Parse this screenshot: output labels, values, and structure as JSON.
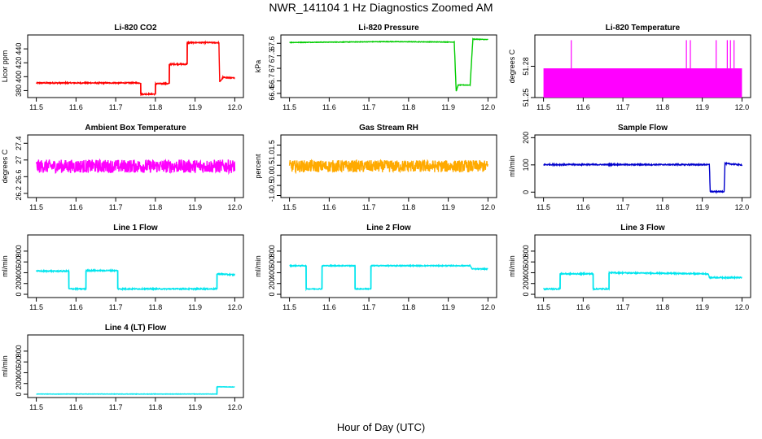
{
  "page": {
    "title": "NWR_141104  1 Hz Diagnostics Zoomed AM",
    "x_axis_title": "Hour of Day (UTC)"
  },
  "chart_data": [
    {
      "type": "line",
      "title": "Li-820 CO2",
      "ylabel": "Licor ppm",
      "color": "#ff0000",
      "xlim": [
        11.5,
        12.0
      ],
      "ylim": [
        370,
        460
      ],
      "xticks": [
        "11.5",
        "11.6",
        "11.7",
        "11.8",
        "11.9",
        "12.0"
      ],
      "yticks": [
        380,
        400,
        420,
        440
      ],
      "noise": 0.8,
      "series": [
        {
          "name": "CO2",
          "points": [
            [
              11.5,
              391
            ],
            [
              11.763,
              391
            ],
            [
              11.763,
              375
            ],
            [
              11.8,
              375
            ],
            [
              11.8,
              390
            ],
            [
              11.835,
              390
            ],
            [
              11.835,
              418
            ],
            [
              11.88,
              418
            ],
            [
              11.88,
              449
            ],
            [
              11.96,
              449
            ],
            [
              11.962,
              392
            ],
            [
              11.97,
              399
            ],
            [
              12.0,
              398
            ]
          ]
        }
      ]
    },
    {
      "type": "line",
      "title": "Li-820 Pressure",
      "ylabel": "kPa",
      "color": "#00cc00",
      "xlim": [
        11.5,
        12.0
      ],
      "ylim": [
        66.3,
        67.8
      ],
      "xticks": [
        "11.5",
        "11.6",
        "11.7",
        "11.8",
        "11.9",
        "12.0"
      ],
      "yticks": [
        66.4,
        66.7,
        67.0,
        67.3,
        67.6
      ],
      "noise": 0.006,
      "series": [
        {
          "name": "Pressure",
          "points": [
            [
              11.5,
              67.62
            ],
            [
              11.75,
              67.64
            ],
            [
              11.915,
              67.63
            ],
            [
              11.92,
              66.45
            ],
            [
              11.925,
              66.6
            ],
            [
              11.955,
              66.6
            ],
            [
              11.962,
              67.7
            ],
            [
              12.0,
              67.69
            ]
          ]
        }
      ]
    },
    {
      "type": "line",
      "title": "Li-820 Temperature",
      "ylabel": "degrees C",
      "color": "#ff00ff",
      "xlim": [
        11.5,
        12.0
      ],
      "ylim": [
        51.25,
        51.31
      ],
      "xticks": [
        "11.5",
        "11.6",
        "11.7",
        "11.8",
        "11.9",
        "12.0"
      ],
      "yticks": [
        51.25,
        51.28
      ],
      "band": [
        51.25,
        51.278
      ],
      "spikes": [
        11.57,
        11.86,
        11.87,
        11.935,
        11.963,
        11.971,
        11.98
      ],
      "spike_top": 51.305,
      "series": [
        {
          "name": "Temperature",
          "points": [
            [
              11.5,
              51.25
            ],
            [
              12.0,
              51.278
            ]
          ]
        }
      ]
    },
    {
      "type": "line",
      "title": "Ambient Box Temperature",
      "ylabel": "degrees C",
      "color": "#ff00ff",
      "xlim": [
        11.5,
        12.0
      ],
      "ylim": [
        26.1,
        27.6
      ],
      "xticks": [
        "11.5",
        "11.6",
        "11.7",
        "11.8",
        "11.9",
        "12.0"
      ],
      "yticks": [
        26.2,
        26.6,
        27.0,
        27.4
      ],
      "noise": 0.16,
      "series": [
        {
          "name": "Box Temp",
          "points": [
            [
              11.5,
              26.85
            ],
            [
              12.0,
              26.85
            ]
          ]
        }
      ]
    },
    {
      "type": "line",
      "title": "Gas Stream RH",
      "ylabel": "percent",
      "color": "#ffaa00",
      "xlim": [
        11.5,
        12.0
      ],
      "ylim": [
        -1.1,
        2.0
      ],
      "xticks": [
        "11.5",
        "11.6",
        "11.7",
        "11.8",
        "11.9",
        "12.0"
      ],
      "yticks": [
        -1.0,
        -0.5,
        0.0,
        0.5,
        1.0,
        1.5
      ],
      "noise": 0.3,
      "series": [
        {
          "name": "RH",
          "points": [
            [
              11.5,
              0.45
            ],
            [
              12.0,
              0.45
            ]
          ]
        }
      ]
    },
    {
      "type": "line",
      "title": "Sample Flow",
      "ylabel": "ml/min",
      "color": "#0000cc",
      "xlim": [
        11.5,
        12.0
      ],
      "ylim": [
        -20,
        210
      ],
      "xticks": [
        "11.5",
        "11.6",
        "11.7",
        "11.8",
        "11.9",
        "12.0"
      ],
      "yticks": [
        0,
        100,
        200
      ],
      "noise": 2,
      "series": [
        {
          "name": "Sample Flow",
          "points": [
            [
              11.5,
              101
            ],
            [
              11.918,
              101
            ],
            [
              11.92,
              2
            ],
            [
              11.955,
              2
            ],
            [
              11.957,
              105
            ],
            [
              12.0,
              100
            ]
          ]
        }
      ]
    },
    {
      "type": "line",
      "title": "Line 1 Flow",
      "ylabel": "ml/min",
      "color": "#00e5ee",
      "xlim": [
        11.5,
        12.0
      ],
      "ylim": [
        -60,
        1100
      ],
      "xticks": [
        "11.5",
        "11.6",
        "11.7",
        "11.8",
        "11.9",
        "12.0"
      ],
      "yticks": [
        0,
        200,
        400,
        600,
        800
      ],
      "noise": 10,
      "series": [
        {
          "name": "Line 1",
          "points": [
            [
              11.5,
              430
            ],
            [
              11.582,
              430
            ],
            [
              11.582,
              100
            ],
            [
              11.625,
              100
            ],
            [
              11.625,
              440
            ],
            [
              11.705,
              440
            ],
            [
              11.705,
              100
            ],
            [
              11.955,
              100
            ],
            [
              11.955,
              380
            ],
            [
              12.0,
              360
            ]
          ]
        }
      ]
    },
    {
      "type": "line",
      "title": "Line 2 Flow",
      "ylabel": "ml/min",
      "color": "#00e5ee",
      "xlim": [
        11.5,
        12.0
      ],
      "ylim": [
        -60,
        1100
      ],
      "xticks": [
        "11.5",
        "11.6",
        "11.7",
        "11.8",
        "11.9",
        "12.0"
      ],
      "yticks": [
        0,
        200,
        400,
        600,
        800
      ],
      "noise": 8,
      "series": [
        {
          "name": "Line 2",
          "points": [
            [
              11.5,
              530
            ],
            [
              11.542,
              530
            ],
            [
              11.542,
              100
            ],
            [
              11.582,
              100
            ],
            [
              11.582,
              530
            ],
            [
              11.665,
              530
            ],
            [
              11.665,
              100
            ],
            [
              11.705,
              100
            ],
            [
              11.705,
              530
            ],
            [
              11.955,
              530
            ],
            [
              11.96,
              470
            ],
            [
              12.0,
              470
            ]
          ]
        }
      ]
    },
    {
      "type": "line",
      "title": "Line 3 Flow",
      "ylabel": "ml/min",
      "color": "#00e5ee",
      "xlim": [
        11.5,
        12.0
      ],
      "ylim": [
        -60,
        1100
      ],
      "xticks": [
        "11.5",
        "11.6",
        "11.7",
        "11.8",
        "11.9",
        "12.0"
      ],
      "yticks": [
        0,
        200,
        400,
        600,
        800
      ],
      "noise": 10,
      "series": [
        {
          "name": "Line 3",
          "points": [
            [
              11.5,
              100
            ],
            [
              11.542,
              100
            ],
            [
              11.542,
              380
            ],
            [
              11.625,
              380
            ],
            [
              11.625,
              100
            ],
            [
              11.665,
              100
            ],
            [
              11.665,
              400
            ],
            [
              11.915,
              380
            ],
            [
              11.918,
              310
            ],
            [
              12.0,
              310
            ]
          ]
        }
      ]
    },
    {
      "type": "line",
      "title": "Line 4 (LT) Flow",
      "ylabel": "ml/min",
      "color": "#00e5ee",
      "xlim": [
        11.5,
        12.0
      ],
      "ylim": [
        -60,
        1100
      ],
      "xticks": [
        "11.5",
        "11.6",
        "11.7",
        "11.8",
        "11.9",
        "12.0"
      ],
      "yticks": [
        0,
        200,
        400,
        600,
        800
      ],
      "noise": 3,
      "series": [
        {
          "name": "Line 4",
          "points": [
            [
              11.5,
              5
            ],
            [
              11.955,
              5
            ],
            [
              11.955,
              140
            ],
            [
              12.0,
              135
            ]
          ]
        }
      ]
    }
  ]
}
